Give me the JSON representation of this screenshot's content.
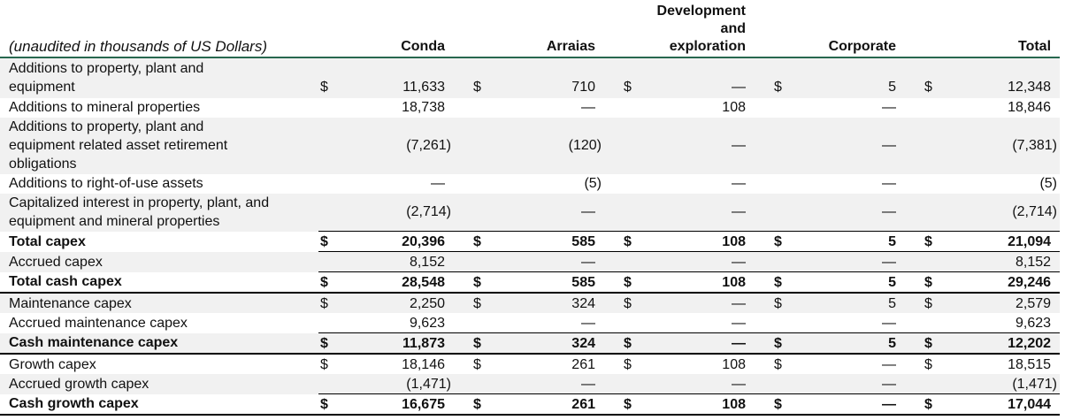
{
  "table": {
    "caption": "(unaudited in thousands of US Dollars)",
    "columns": [
      "Conda",
      "Arraias",
      "Development\nand\nexploration",
      "Corporate",
      "Total"
    ],
    "currency_symbol": "$",
    "empty_value": "—",
    "colors": {
      "header_rule": "#27684f",
      "stripe": "#f1f1f1",
      "rule": "#000000",
      "text": "#111111"
    },
    "rows": [
      {
        "label": "Additions to property, plant and\nequipment",
        "bold": false,
        "dollar": true,
        "rule_above": "none",
        "rule_below": "none",
        "values": [
          "11,633",
          "710",
          "—",
          "5",
          "12,348"
        ]
      },
      {
        "label": "Additions to mineral properties",
        "bold": false,
        "dollar": false,
        "rule_above": "none",
        "rule_below": "none",
        "values": [
          "18,738",
          "—",
          "108",
          "—",
          "18,846"
        ]
      },
      {
        "label": "Additions to property, plant and\nequipment related asset retirement\nobligations",
        "bold": false,
        "dollar": false,
        "rule_above": "none",
        "rule_below": "none",
        "values": [
          "(7,261)",
          "(120)",
          "—",
          "—",
          "(7,381)"
        ]
      },
      {
        "label": "Additions to right-of-use assets",
        "bold": false,
        "dollar": false,
        "rule_above": "none",
        "rule_below": "none",
        "values": [
          "—",
          "(5)",
          "—",
          "—",
          "(5)"
        ]
      },
      {
        "label": "Capitalized interest in property, plant, and\nequipment and mineral properties",
        "bold": false,
        "dollar": false,
        "rule_above": "none",
        "rule_below": "none",
        "values": [
          "(2,714)",
          "—",
          "—",
          "—",
          "(2,714)"
        ]
      },
      {
        "label": "Total capex",
        "bold": true,
        "dollar": true,
        "rule_above": "numeric",
        "rule_below": "numeric",
        "values": [
          "20,396",
          "585",
          "108",
          "5",
          "21,094"
        ]
      },
      {
        "label": "Accrued capex",
        "bold": false,
        "dollar": false,
        "rule_above": "none",
        "rule_below": "numeric",
        "values": [
          "8,152",
          "—",
          "—",
          "—",
          "8,152"
        ]
      },
      {
        "label": "Total cash capex",
        "bold": true,
        "dollar": true,
        "rule_above": "none",
        "rule_below": "full",
        "values": [
          "28,548",
          "585",
          "108",
          "5",
          "29,246"
        ]
      },
      {
        "label": "Maintenance capex",
        "bold": false,
        "dollar": true,
        "rule_above": "none",
        "rule_below": "none",
        "values": [
          "2,250",
          "324",
          "—",
          "5",
          "2,579"
        ]
      },
      {
        "label": "Accrued maintenance capex",
        "bold": false,
        "dollar": false,
        "rule_above": "none",
        "rule_below": "numeric",
        "values": [
          "9,623",
          "—",
          "—",
          "—",
          "9,623"
        ]
      },
      {
        "label": "Cash maintenance capex",
        "bold": true,
        "dollar": true,
        "rule_above": "none",
        "rule_below": "full",
        "values": [
          "11,873",
          "324",
          "—",
          "5",
          "12,202"
        ]
      },
      {
        "label": "Growth capex",
        "bold": false,
        "dollar": true,
        "rule_above": "none",
        "rule_below": "none",
        "values": [
          "18,146",
          "261",
          "108",
          "—",
          "18,515"
        ]
      },
      {
        "label": "Accrued growth capex",
        "bold": false,
        "dollar": false,
        "rule_above": "none",
        "rule_below": "numeric",
        "values": [
          "(1,471)",
          "—",
          "—",
          "—",
          "(1,471)"
        ]
      },
      {
        "label": "Cash growth capex",
        "bold": true,
        "dollar": true,
        "rule_above": "none",
        "rule_below": "full",
        "values": [
          "16,675",
          "261",
          "108",
          "—",
          "17,044"
        ]
      }
    ]
  }
}
